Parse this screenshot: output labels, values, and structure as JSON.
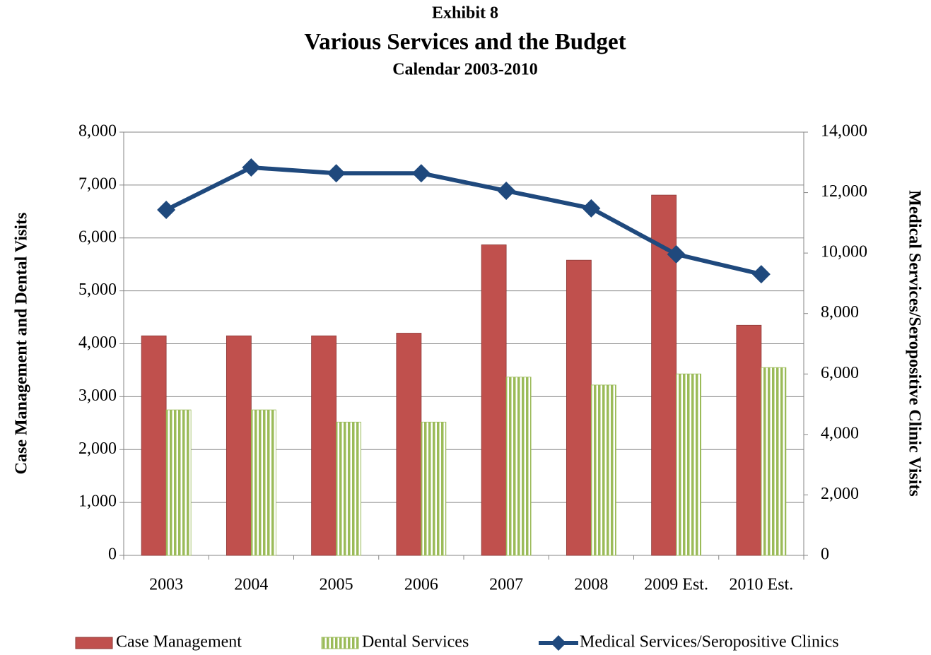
{
  "chart_data": {
    "type": "bar-line",
    "title": "Exhibit 8",
    "subtitle": "Various Services and the Budget",
    "subtitle2": "Calendar 2003-2010",
    "y_label": "Case Management and Dental Visits",
    "y2_label": "Medical Services/Seropositive Clinic Visits",
    "categories": [
      "2003",
      "2004",
      "2005",
      "2006",
      "2007",
      "2008",
      "2009 Est.",
      "2010 Est."
    ],
    "series": [
      {
        "name": "Case Management",
        "type": "bar",
        "color": "#c0504d",
        "values": [
          4150,
          4150,
          4150,
          4200,
          5870,
          5580,
          6810,
          4350
        ]
      },
      {
        "name": "Dental Services",
        "type": "bar",
        "color": "#9bbb59",
        "pattern": "vertical-stripes",
        "values": [
          2750,
          2750,
          2520,
          2520,
          3370,
          3220,
          3430,
          3550
        ]
      },
      {
        "name": "Medical Services/Seropositive Clinics",
        "type": "line",
        "axis": "y2",
        "color": "#1f497d",
        "values": [
          11430,
          12830,
          12640,
          12640,
          12060,
          11480,
          9960,
          9300
        ]
      }
    ],
    "ylim": [
      0,
      8000
    ],
    "yticks": [
      0,
      {
        "value": 1000,
        "label": "1,000"
      },
      {
        "value": 2000,
        "label": "2,000"
      },
      {
        "value": 3000,
        "label": "3,000"
      },
      {
        "value": 4000,
        "label": "4,000"
      },
      {
        "value": 5000,
        "label": "5,000"
      },
      {
        "value": 6000,
        "label": "6,000"
      },
      {
        "value": 7000,
        "label": "7,000"
      },
      {
        "value": 8000,
        "label": "8,000"
      }
    ],
    "y2lim": [
      0,
      14000
    ],
    "y2ticks": [
      0,
      {
        "value": 2000,
        "label": "2,000"
      },
      {
        "value": 4000,
        "label": "4,000"
      },
      {
        "value": 6000,
        "label": "6,000"
      },
      {
        "value": 8000,
        "label": "8,000"
      },
      {
        "value": 10000,
        "label": "10,000"
      },
      {
        "value": 12000,
        "label": "12,000"
      },
      {
        "value": 14000,
        "label": "14,000"
      }
    ],
    "grid": true,
    "legend": "bottom"
  }
}
